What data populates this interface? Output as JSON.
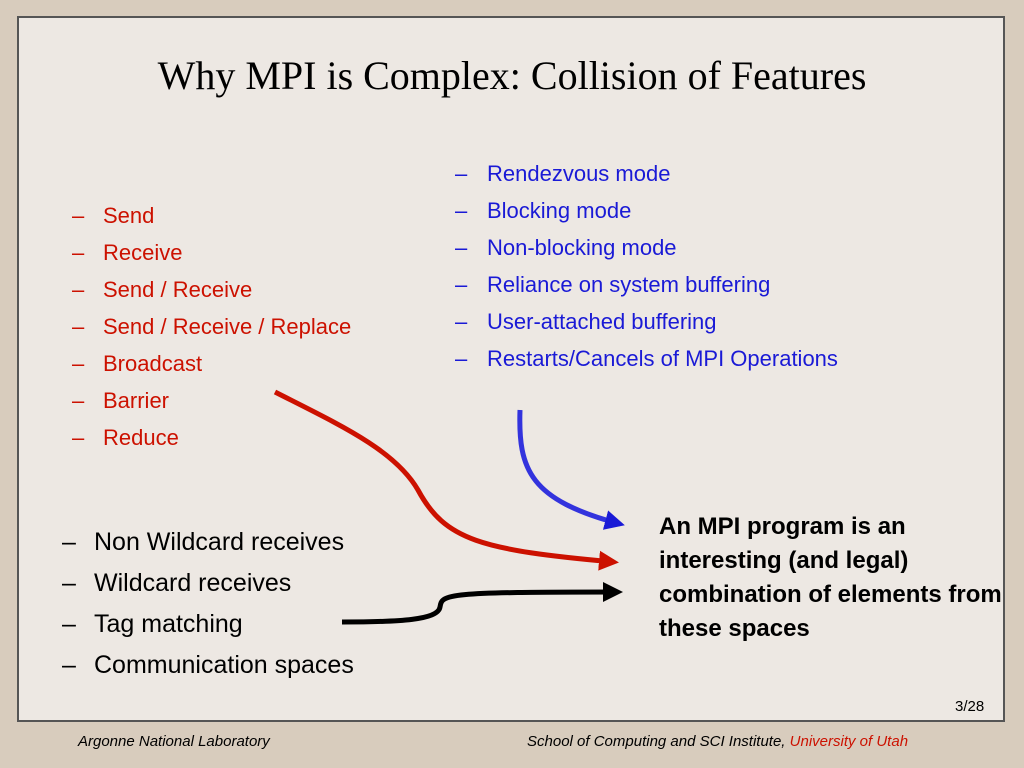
{
  "slide": {
    "title": "Why MPI is Complex: Collision of Features",
    "bullet_marker": "–",
    "collective_ops": [
      "Send",
      "Receive",
      "Send / Receive",
      "Send / Receive / Replace",
      "Broadcast",
      "Barrier",
      "Reduce"
    ],
    "send_modes": [
      "Rendezvous mode",
      "Blocking mode",
      "Non-blocking mode",
      "Reliance on system buffering",
      "User-attached buffering",
      "Restarts/Cancels of MPI Operations"
    ],
    "receive_features": [
      "Non Wildcard receives",
      "Wildcard receives",
      "Tag matching",
      "Communication spaces"
    ],
    "callout": "An MPI program is an interesting (and legal) combination of elements from these spaces",
    "page_number": "3/28"
  },
  "footer": {
    "left": "Argonne National Laboratory",
    "right_prefix": "School of Computing and SCI Institute, ",
    "right_highlight": "University of Utah"
  },
  "colors": {
    "red": "#cc1100",
    "blue": "#1a1ad6",
    "black": "#000000",
    "slide_bg": "#ede8e3",
    "page_bg": "#d8ccbd"
  }
}
